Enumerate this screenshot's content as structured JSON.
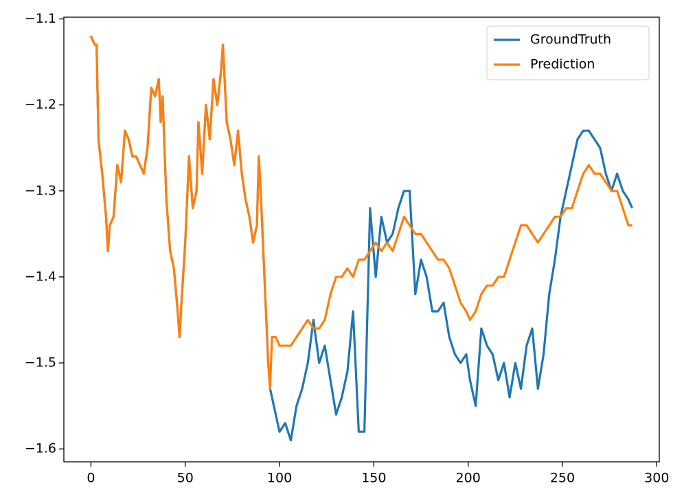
{
  "chart_data": {
    "type": "line",
    "x": [
      0,
      2,
      3,
      4,
      6,
      8,
      9,
      10,
      12,
      14,
      16,
      18,
      20,
      22,
      24,
      26,
      28,
      30,
      32,
      34,
      36,
      37,
      38,
      40,
      42,
      44,
      46,
      47,
      48,
      50,
      52,
      54,
      56,
      57,
      59,
      61,
      63,
      65,
      67,
      69,
      70,
      72,
      74,
      76,
      78,
      80,
      82,
      84,
      86,
      88,
      89,
      90,
      92,
      94,
      95,
      96,
      98,
      100,
      103,
      106,
      109,
      112,
      115,
      118,
      121,
      124,
      127,
      130,
      133,
      136,
      139,
      142,
      145,
      148,
      151,
      154,
      157,
      160,
      163,
      166,
      169,
      172,
      175,
      178,
      181,
      184,
      187,
      190,
      193,
      196,
      199,
      201,
      204,
      207,
      210,
      213,
      216,
      219,
      222,
      225,
      228,
      231,
      234,
      237,
      240,
      243,
      246,
      249,
      252,
      255,
      258,
      261,
      264,
      267,
      270,
      273,
      276,
      279,
      282,
      285,
      287
    ],
    "series": [
      {
        "name": "GroundTruth",
        "color": "#1f77b4",
        "values": [
          -1.12,
          -1.13,
          -1.13,
          -1.24,
          -1.28,
          -1.33,
          -1.37,
          -1.34,
          -1.33,
          -1.27,
          -1.29,
          -1.23,
          -1.24,
          -1.26,
          -1.26,
          -1.27,
          -1.28,
          -1.25,
          -1.18,
          -1.19,
          -1.17,
          -1.22,
          -1.19,
          -1.31,
          -1.37,
          -1.39,
          -1.44,
          -1.47,
          -1.43,
          -1.36,
          -1.26,
          -1.32,
          -1.3,
          -1.22,
          -1.28,
          -1.2,
          -1.24,
          -1.17,
          -1.2,
          -1.16,
          -1.13,
          -1.22,
          -1.24,
          -1.27,
          -1.23,
          -1.28,
          -1.31,
          -1.33,
          -1.36,
          -1.34,
          -1.26,
          -1.3,
          -1.4,
          -1.5,
          -1.53,
          -1.54,
          -1.56,
          -1.58,
          -1.57,
          -1.59,
          -1.55,
          -1.53,
          -1.5,
          -1.45,
          -1.5,
          -1.48,
          -1.52,
          -1.56,
          -1.54,
          -1.51,
          -1.44,
          -1.58,
          -1.58,
          -1.32,
          -1.4,
          -1.33,
          -1.36,
          -1.35,
          -1.32,
          -1.3,
          -1.3,
          -1.42,
          -1.38,
          -1.4,
          -1.44,
          -1.44,
          -1.43,
          -1.47,
          -1.49,
          -1.5,
          -1.49,
          -1.52,
          -1.55,
          -1.46,
          -1.48,
          -1.49,
          -1.52,
          -1.5,
          -1.54,
          -1.5,
          -1.53,
          -1.48,
          -1.46,
          -1.53,
          -1.49,
          -1.42,
          -1.38,
          -1.33,
          -1.3,
          -1.27,
          -1.24,
          -1.23,
          -1.23,
          -1.24,
          -1.25,
          -1.28,
          -1.3,
          -1.28,
          -1.3,
          -1.31,
          -1.32
        ]
      },
      {
        "name": "Prediction",
        "color": "#ff7f0e",
        "values": [
          -1.12,
          -1.13,
          -1.13,
          -1.24,
          -1.28,
          -1.33,
          -1.37,
          -1.34,
          -1.33,
          -1.27,
          -1.29,
          -1.23,
          -1.24,
          -1.26,
          -1.26,
          -1.27,
          -1.28,
          -1.25,
          -1.18,
          -1.19,
          -1.17,
          -1.22,
          -1.19,
          -1.31,
          -1.37,
          -1.39,
          -1.44,
          -1.47,
          -1.43,
          -1.36,
          -1.26,
          -1.32,
          -1.3,
          -1.22,
          -1.28,
          -1.2,
          -1.24,
          -1.17,
          -1.2,
          -1.16,
          -1.13,
          -1.22,
          -1.24,
          -1.27,
          -1.23,
          -1.28,
          -1.31,
          -1.33,
          -1.36,
          -1.34,
          -1.26,
          -1.3,
          -1.4,
          -1.5,
          -1.53,
          -1.47,
          -1.47,
          -1.48,
          -1.48,
          -1.48,
          -1.47,
          -1.46,
          -1.45,
          -1.46,
          -1.46,
          -1.45,
          -1.42,
          -1.4,
          -1.4,
          -1.39,
          -1.4,
          -1.38,
          -1.38,
          -1.37,
          -1.36,
          -1.37,
          -1.36,
          -1.37,
          -1.35,
          -1.33,
          -1.34,
          -1.35,
          -1.35,
          -1.36,
          -1.37,
          -1.38,
          -1.38,
          -1.39,
          -1.41,
          -1.43,
          -1.44,
          -1.45,
          -1.44,
          -1.42,
          -1.41,
          -1.41,
          -1.4,
          -1.4,
          -1.38,
          -1.36,
          -1.34,
          -1.34,
          -1.35,
          -1.36,
          -1.35,
          -1.34,
          -1.33,
          -1.33,
          -1.32,
          -1.32,
          -1.3,
          -1.28,
          -1.27,
          -1.28,
          -1.28,
          -1.29,
          -1.3,
          -1.3,
          -1.32,
          -1.34,
          -1.34
        ]
      }
    ],
    "xlim": [
      -14.35,
      301.35
    ],
    "ylim": [
      -1.615,
      -1.098
    ],
    "xticks": [
      0,
      50,
      100,
      150,
      200,
      250,
      300
    ],
    "yticks": [
      {
        "value": -1.6,
        "label": "−1.6"
      },
      {
        "value": -1.5,
        "label": "−1.5"
      },
      {
        "value": -1.4,
        "label": "−1.4"
      },
      {
        "value": -1.3,
        "label": "−1.3"
      },
      {
        "value": -1.2,
        "label": "−1.2"
      },
      {
        "value": -1.1,
        "label": "−1.1"
      }
    ],
    "legend": "upper right"
  }
}
